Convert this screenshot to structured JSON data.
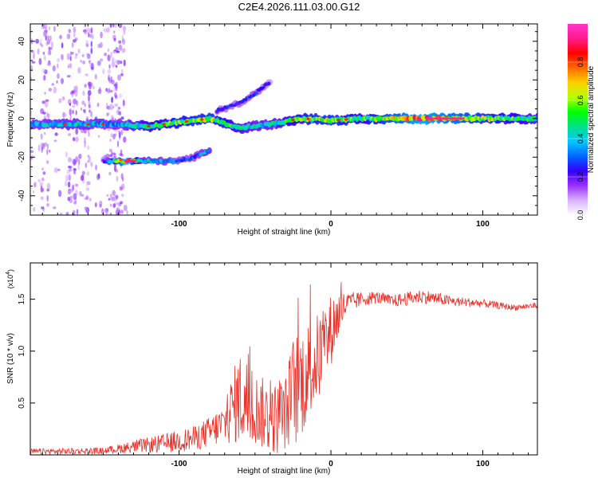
{
  "title": "C2E4.2026.111.03.00.G12",
  "colors": {
    "snr_line": "#e8332a",
    "axes": "#000000"
  },
  "chart_data": [
    {
      "type": "heatmap",
      "name": "spectrogram",
      "xlabel": "Height of straight line (km)",
      "ylabel": "Frequency (Hz)",
      "xlim": [
        -198,
        136
      ],
      "ylim": [
        -50,
        49
      ],
      "xticks": [
        -100,
        0,
        100
      ],
      "yticks": [
        -40,
        -20,
        0,
        20,
        40
      ],
      "colorbar": {
        "label": "Normalized spectral amplitude",
        "range": [
          0,
          1
        ],
        "ticks": [
          "0.0",
          "0.2",
          "0.4",
          "0.6",
          "0.8"
        ],
        "tick_values": [
          0.0,
          0.2,
          0.4,
          0.6,
          0.8
        ],
        "colormap": [
          "#ffffff",
          "#d9b3ff",
          "#9b30ff",
          "#3300ff",
          "#0066ff",
          "#00c8ff",
          "#00e08a",
          "#00ff00",
          "#b4ff00",
          "#ffd000",
          "#ff6a00",
          "#ff0000",
          "#ff1a8c",
          "#ff33cc"
        ]
      },
      "features": [
        {
          "name": "main-trace",
          "x": [
            -198,
            -170,
            -140,
            -120,
            -100,
            -80,
            -60,
            -40,
            -20,
            0,
            20,
            60,
            100,
            136
          ],
          "y": [
            -3,
            -3,
            -3,
            -4,
            -2,
            0,
            -5,
            -3,
            0,
            -1,
            0,
            0,
            0,
            0
          ],
          "amplitude": [
            0.35,
            0.4,
            0.35,
            0.5,
            0.55,
            0.6,
            0.45,
            0.4,
            0.55,
            0.6,
            0.5,
            0.8,
            0.6,
            0.45
          ]
        },
        {
          "name": "lower-trace",
          "x": [
            -150,
            -135,
            -125,
            -100,
            -90,
            -80
          ],
          "y": [
            -22,
            -22,
            -22,
            -22,
            -20,
            -16
          ],
          "amplitude": [
            0.2,
            0.85,
            0.4,
            0.3,
            0.3,
            0.4
          ]
        },
        {
          "name": "upper-branch",
          "x": [
            -75,
            -60,
            -50,
            -40
          ],
          "y": [
            4,
            8,
            13,
            19
          ],
          "amplitude": [
            0.25,
            0.25,
            0.3,
            0.2
          ]
        }
      ]
    },
    {
      "type": "line",
      "name": "snr",
      "xlabel": "Height of straight line (km)",
      "ylabel": "SNR (10 * v/v)",
      "multiplier": "(x10",
      "multiplier_exp": "4",
      "multiplier_close": ")",
      "xlim": [
        -198,
        136
      ],
      "ylim": [
        0,
        18500
      ],
      "xticks": [
        -100,
        0,
        100
      ],
      "yticks": [
        5000,
        10000,
        15000
      ],
      "ytick_labels": [
        "0.5",
        "1.0",
        "1.5"
      ],
      "envelope": {
        "x": [
          -198,
          -150,
          -130,
          -110,
          -90,
          -80,
          -70,
          -65,
          -60,
          -55,
          -50,
          -45,
          -40,
          -35,
          -30,
          -25,
          -20,
          -15,
          -10,
          -5,
          0,
          5,
          10,
          20,
          30,
          40,
          60,
          80,
          100,
          120,
          136
        ],
        "base": [
          300,
          400,
          800,
          1100,
          1600,
          2200,
          3000,
          4500,
          5500,
          5000,
          4500,
          4000,
          3500,
          3500,
          4000,
          6000,
          7000,
          8000,
          9000,
          10000,
          12000,
          13500,
          14500,
          15000,
          15200,
          14800,
          15300,
          14800,
          14600,
          14200,
          14400
        ],
        "amp": [
          300,
          300,
          600,
          900,
          1200,
          1500,
          2000,
          3500,
          4500,
          4500,
          3500,
          3500,
          3500,
          3500,
          3500,
          5500,
          5500,
          5000,
          4500,
          4000,
          3500,
          2500,
          1200,
          700,
          600,
          600,
          700,
          500,
          400,
          300,
          300
        ]
      }
    }
  ]
}
